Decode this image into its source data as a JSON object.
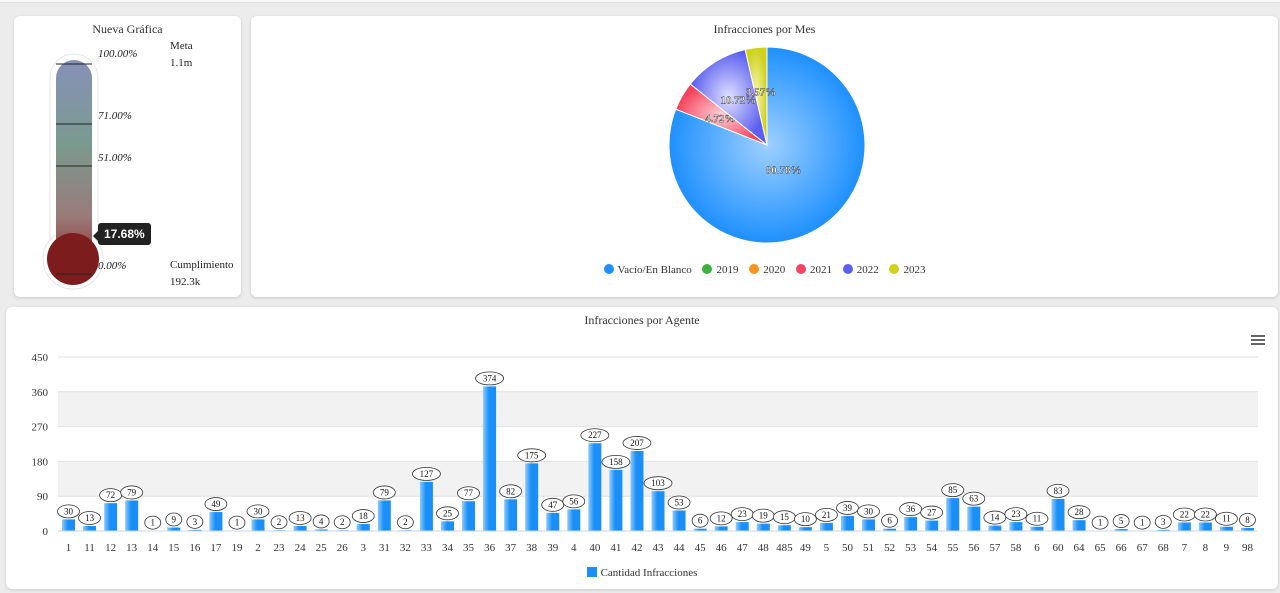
{
  "gauge": {
    "title": "Nueva Gráfica",
    "meta_label": "Meta",
    "meta_value": "1.1m",
    "cumplimiento_label": "Cumplimiento",
    "cumplimiento_value": "192.3k",
    "levels": [
      "100.00%",
      "71.00%",
      "51.00%",
      "0.00%"
    ],
    "current_text": "17.68%",
    "current_fraction": 0.1768
  },
  "pie": {
    "title": "Infracciones por Mes",
    "legend": [
      {
        "name": "Vacío/En Blanco",
        "color": "#1e90ff"
      },
      {
        "name": "2019",
        "color": "#3cb043"
      },
      {
        "name": "2020",
        "color": "#f7941d"
      },
      {
        "name": "2021",
        "color": "#f4445e"
      },
      {
        "name": "2022",
        "color": "#5b5ef0"
      },
      {
        "name": "2023",
        "color": "#cfd11d"
      }
    ]
  },
  "chart_data": [
    {
      "type": "pie",
      "title": "Infracciones por Mes",
      "categories": [
        "Vacío/En Blanco",
        "2019",
        "2020",
        "2021",
        "2022",
        "2023"
      ],
      "values": [
        80.78,
        0,
        0,
        4.72,
        10.72,
        3.57
      ],
      "data_labels": [
        "80.78%",
        "",
        "",
        "4.72%",
        "10.72%",
        "3.57%"
      ],
      "legend_placement": "bottom"
    },
    {
      "type": "bar",
      "title": "Infracciones por Agente",
      "categories": [
        "1",
        "11",
        "12",
        "13",
        "14",
        "15",
        "16",
        "17",
        "19",
        "2",
        "23",
        "24",
        "25",
        "26",
        "3",
        "31",
        "32",
        "33",
        "34",
        "35",
        "36",
        "37",
        "38",
        "39",
        "4",
        "40",
        "41",
        "42",
        "43",
        "44",
        "45",
        "46",
        "47",
        "48",
        "485",
        "49",
        "5",
        "50",
        "51",
        "52",
        "53",
        "54",
        "55",
        "56",
        "57",
        "58",
        "6",
        "60",
        "64",
        "65",
        "66",
        "67",
        "68",
        "7",
        "8",
        "9",
        "98"
      ],
      "series": [
        {
          "name": "Cantidad Infracciones",
          "values": [
            30,
            13,
            72,
            79,
            1,
            9,
            3,
            49,
            1,
            30,
            2,
            13,
            4,
            2,
            18,
            79,
            2,
            127,
            25,
            77,
            374,
            82,
            175,
            47,
            56,
            227,
            158,
            207,
            103,
            53,
            6,
            12,
            23,
            19,
            15,
            10,
            21,
            39,
            30,
            6,
            36,
            27,
            85,
            63,
            14,
            23,
            11,
            83,
            28,
            1,
            5,
            1,
            3,
            22,
            22,
            11,
            8
          ]
        }
      ],
      "y_ticks": [
        "0",
        "90",
        "180",
        "270",
        "360",
        "450"
      ],
      "ylim": [
        0,
        450
      ],
      "grid": true,
      "legend_placement": "bottom"
    }
  ]
}
